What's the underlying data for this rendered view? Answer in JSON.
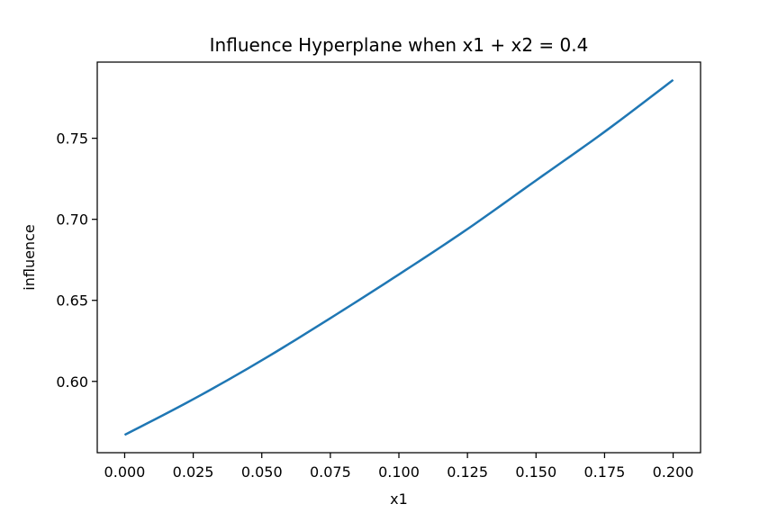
{
  "chart_data": {
    "type": "line",
    "title": "Influence Hyperplane when x1 + x2 = 0.4",
    "xlabel": "x1",
    "ylabel": "influence",
    "xlim": [
      -0.01,
      0.21
    ],
    "ylim": [
      0.556,
      0.797
    ],
    "x_ticks": [
      0.0,
      0.025,
      0.05,
      0.075,
      0.1,
      0.125,
      0.15,
      0.175,
      0.2
    ],
    "x_tick_labels": [
      "0.000",
      "0.025",
      "0.050",
      "0.075",
      "0.100",
      "0.125",
      "0.150",
      "0.175",
      "0.200"
    ],
    "y_ticks": [
      0.6,
      0.65,
      0.7,
      0.75
    ],
    "y_tick_labels": [
      "0.60",
      "0.65",
      "0.70",
      "0.75"
    ],
    "grid": false,
    "series": [
      {
        "color": "#1f77b4",
        "x": [
          0.0,
          0.025,
          0.05,
          0.075,
          0.1,
          0.125,
          0.15,
          0.175,
          0.2
        ],
        "y": [
          0.567,
          0.589,
          0.613,
          0.639,
          0.666,
          0.694,
          0.724,
          0.754,
          0.786
        ]
      }
    ]
  }
}
